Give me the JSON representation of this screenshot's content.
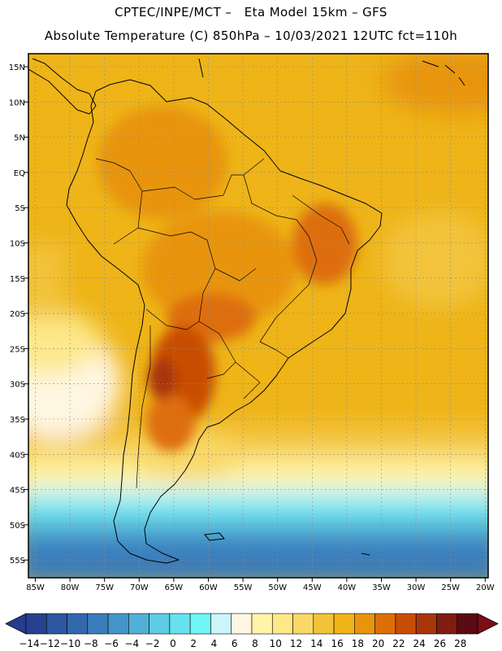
{
  "header": {
    "title_line1": "CPTEC/INPE/MCT –   Eta Model 15km – GFS",
    "title_line2": "Absolute Temperature (C) 850hPa – 10/03/2021 12UTC fct=110h"
  },
  "map": {
    "region": "South America",
    "lat_labels": [
      "15N",
      "10N",
      "5N",
      "EQ",
      "5S",
      "10S",
      "15S",
      "20S",
      "25S",
      "30S",
      "35S",
      "40S",
      "45S",
      "50S",
      "55S"
    ],
    "lon_labels": [
      "85W",
      "80W",
      "75W",
      "70W",
      "65W",
      "60W",
      "55W",
      "50W",
      "45W",
      "40W",
      "35W",
      "30W",
      "25W",
      "20W"
    ]
  },
  "colorbar": {
    "labels": [
      "-14",
      "-12",
      "-10",
      "-8",
      "-6",
      "-4",
      "-2",
      "0",
      "2",
      "4",
      "6",
      "8",
      "10",
      "12",
      "14",
      "16",
      "18",
      "20",
      "22",
      "24",
      "26",
      "28"
    ],
    "colors": [
      "#25418f",
      "#2d56a0",
      "#3368ad",
      "#3b7dbb",
      "#4496c8",
      "#52b0d8",
      "#5ecce4",
      "#66e2ee",
      "#70f6f7",
      "#cbf5f8",
      "#fff6e2",
      "#fff4a8",
      "#fde88a",
      "#f9d866",
      "#f2c33a",
      "#eeb418",
      "#e8950e",
      "#de6e08",
      "#c94d06",
      "#a9350a",
      "#7e1d12",
      "#5a0b14"
    ],
    "low_color": "#2a3a8c",
    "high_color": "#7a0f18"
  }
}
